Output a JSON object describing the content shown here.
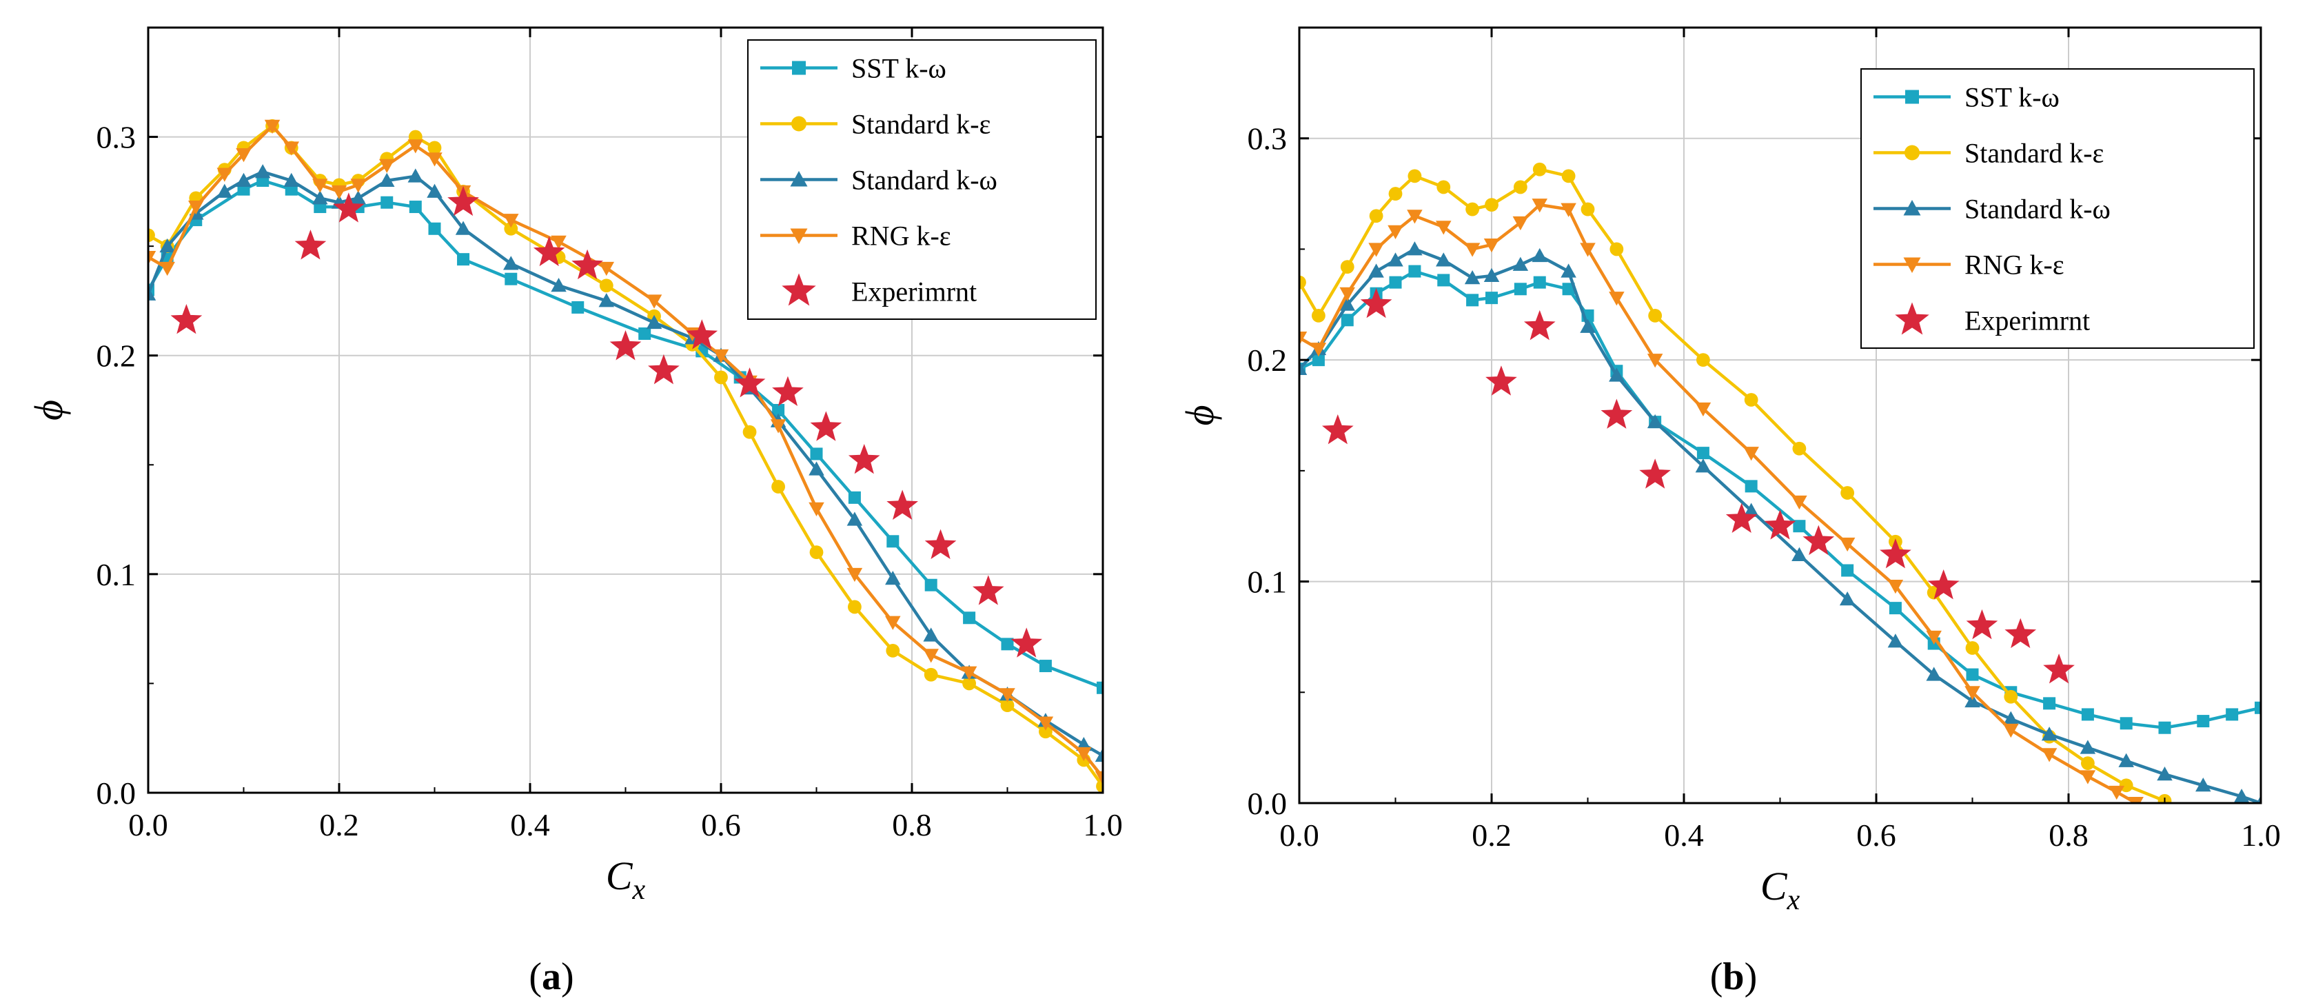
{
  "figure": {
    "panel_labels": [
      "a",
      "b"
    ],
    "colors": {
      "sst": "#1ba6c2",
      "std_ke": "#f5c400",
      "std_kw": "#2a7ea6",
      "rng": "#f28a1a",
      "exp": "#d8283c",
      "grid": "#cccccc",
      "axis": "#000000"
    }
  },
  "chart_data": [
    {
      "type": "line",
      "panel": "a",
      "xlabel": "C",
      "xlabel_sub": "x",
      "ylabel": "ϕ",
      "xlim": [
        0,
        1
      ],
      "ylim": [
        0,
        0.35
      ],
      "xticks": [
        0.0,
        0.2,
        0.4,
        0.6,
        0.8,
        1.0
      ],
      "xtick_labels": [
        "0.0",
        "0.2",
        "0.4",
        "0.6",
        "0.8",
        "1.0"
      ],
      "yticks": [
        0.0,
        0.1,
        0.2,
        0.3
      ],
      "ytick_labels": [
        "0.0",
        "0.1",
        "0.2",
        "0.3"
      ],
      "grid": true,
      "legend_position": "top-right",
      "series": [
        {
          "name": "SST k-ω",
          "key": "sst",
          "marker": "square",
          "x": [
            0.0,
            0.02,
            0.05,
            0.1,
            0.12,
            0.15,
            0.18,
            0.22,
            0.25,
            0.28,
            0.3,
            0.33,
            0.38,
            0.45,
            0.52,
            0.58,
            0.62,
            0.66,
            0.7,
            0.74,
            0.78,
            0.82,
            0.86,
            0.9,
            0.94,
            1.0
          ],
          "y": [
            0.23,
            0.245,
            0.262,
            0.276,
            0.28,
            0.276,
            0.268,
            0.268,
            0.27,
            0.268,
            0.258,
            0.244,
            0.235,
            0.222,
            0.21,
            0.202,
            0.19,
            0.175,
            0.155,
            0.135,
            0.115,
            0.095,
            0.08,
            0.068,
            0.058,
            0.048
          ]
        },
        {
          "name": "Standard k-ε",
          "key": "std_ke",
          "marker": "circle",
          "x": [
            0.0,
            0.02,
            0.05,
            0.08,
            0.1,
            0.13,
            0.15,
            0.18,
            0.2,
            0.22,
            0.25,
            0.28,
            0.3,
            0.33,
            0.38,
            0.43,
            0.48,
            0.53,
            0.57,
            0.6,
            0.63,
            0.66,
            0.7,
            0.74,
            0.78,
            0.82,
            0.86,
            0.9,
            0.94,
            0.98,
            1.0
          ],
          "y": [
            0.255,
            0.25,
            0.272,
            0.285,
            0.295,
            0.305,
            0.295,
            0.28,
            0.278,
            0.28,
            0.29,
            0.3,
            0.295,
            0.275,
            0.258,
            0.245,
            0.232,
            0.218,
            0.205,
            0.19,
            0.165,
            0.14,
            0.11,
            0.085,
            0.065,
            0.054,
            0.05,
            0.04,
            0.028,
            0.015,
            0.003
          ]
        },
        {
          "name": "Standard k-ω",
          "key": "std_kw",
          "marker": "triangle-up",
          "x": [
            0.0,
            0.02,
            0.05,
            0.08,
            0.1,
            0.12,
            0.15,
            0.18,
            0.2,
            0.22,
            0.25,
            0.28,
            0.3,
            0.33,
            0.38,
            0.43,
            0.48,
            0.53,
            0.57,
            0.6,
            0.63,
            0.66,
            0.7,
            0.74,
            0.78,
            0.82,
            0.86,
            0.9,
            0.94,
            0.98,
            1.0
          ],
          "y": [
            0.228,
            0.25,
            0.265,
            0.275,
            0.28,
            0.284,
            0.28,
            0.272,
            0.27,
            0.272,
            0.28,
            0.282,
            0.275,
            0.258,
            0.242,
            0.232,
            0.225,
            0.215,
            0.208,
            0.2,
            0.185,
            0.17,
            0.148,
            0.125,
            0.098,
            0.072,
            0.055,
            0.045,
            0.033,
            0.022,
            0.017
          ]
        },
        {
          "name": "RNG k-ε",
          "key": "rng",
          "marker": "triangle-down",
          "x": [
            0.0,
            0.02,
            0.05,
            0.08,
            0.1,
            0.13,
            0.15,
            0.18,
            0.2,
            0.22,
            0.25,
            0.28,
            0.3,
            0.33,
            0.38,
            0.43,
            0.48,
            0.53,
            0.57,
            0.6,
            0.63,
            0.66,
            0.7,
            0.74,
            0.78,
            0.82,
            0.86,
            0.9,
            0.94,
            0.98,
            1.0
          ],
          "y": [
            0.245,
            0.24,
            0.268,
            0.283,
            0.292,
            0.305,
            0.295,
            0.278,
            0.275,
            0.278,
            0.287,
            0.296,
            0.29,
            0.275,
            0.262,
            0.252,
            0.24,
            0.225,
            0.21,
            0.2,
            0.188,
            0.168,
            0.13,
            0.1,
            0.078,
            0.063,
            0.055,
            0.045,
            0.032,
            0.018,
            0.007
          ]
        },
        {
          "name": "Experimrnt",
          "key": "exp",
          "marker": "star",
          "line": false,
          "x": [
            0.04,
            0.17,
            0.21,
            0.33,
            0.42,
            0.46,
            0.5,
            0.54,
            0.58,
            0.63,
            0.67,
            0.71,
            0.75,
            0.79,
            0.83,
            0.88,
            0.92
          ],
          "y": [
            0.216,
            0.25,
            0.267,
            0.27,
            0.247,
            0.241,
            0.204,
            0.193,
            0.209,
            0.187,
            0.183,
            0.167,
            0.152,
            0.131,
            0.113,
            0.092,
            0.068
          ]
        }
      ]
    },
    {
      "type": "line",
      "panel": "b",
      "xlabel": "C",
      "xlabel_sub": "x",
      "ylabel": "ϕ",
      "xlim": [
        0,
        1
      ],
      "ylim": [
        0,
        0.35
      ],
      "xticks": [
        0.0,
        0.2,
        0.4,
        0.6,
        0.8,
        1.0
      ],
      "xtick_labels": [
        "0.0",
        "0.2",
        "0.4",
        "0.6",
        "0.8",
        "1.0"
      ],
      "yticks": [
        0.0,
        0.1,
        0.2,
        0.3
      ],
      "ytick_labels": [
        "0.0",
        "0.1",
        "0.2",
        "0.3"
      ],
      "grid": true,
      "legend_position": "top-right",
      "series": [
        {
          "name": "SST k-ω",
          "key": "sst",
          "marker": "square",
          "x": [
            0.0,
            0.02,
            0.05,
            0.08,
            0.1,
            0.12,
            0.15,
            0.18,
            0.2,
            0.23,
            0.25,
            0.28,
            0.3,
            0.33,
            0.37,
            0.42,
            0.47,
            0.52,
            0.57,
            0.62,
            0.66,
            0.7,
            0.74,
            0.78,
            0.82,
            0.86,
            0.9,
            0.94,
            0.97,
            1.0
          ],
          "y": [
            0.196,
            0.2,
            0.218,
            0.23,
            0.235,
            0.24,
            0.236,
            0.227,
            0.228,
            0.232,
            0.235,
            0.232,
            0.22,
            0.195,
            0.172,
            0.158,
            0.143,
            0.125,
            0.105,
            0.088,
            0.072,
            0.058,
            0.05,
            0.045,
            0.04,
            0.036,
            0.034,
            0.037,
            0.04,
            0.043
          ]
        },
        {
          "name": "Standard k-ε",
          "key": "std_ke",
          "marker": "circle",
          "x": [
            0.0,
            0.02,
            0.05,
            0.08,
            0.1,
            0.12,
            0.15,
            0.18,
            0.2,
            0.23,
            0.25,
            0.28,
            0.3,
            0.33,
            0.37,
            0.42,
            0.47,
            0.52,
            0.57,
            0.62,
            0.66,
            0.7,
            0.74,
            0.78,
            0.82,
            0.86,
            0.9
          ],
          "y": [
            0.235,
            0.22,
            0.242,
            0.265,
            0.275,
            0.283,
            0.278,
            0.268,
            0.27,
            0.278,
            0.286,
            0.283,
            0.268,
            0.25,
            0.22,
            0.2,
            0.182,
            0.16,
            0.14,
            0.118,
            0.095,
            0.07,
            0.048,
            0.03,
            0.018,
            0.008,
            0.001
          ]
        },
        {
          "name": "Standard k-ω",
          "key": "std_kw",
          "marker": "triangle-up",
          "x": [
            0.0,
            0.02,
            0.05,
            0.08,
            0.1,
            0.12,
            0.15,
            0.18,
            0.2,
            0.23,
            0.25,
            0.28,
            0.3,
            0.33,
            0.37,
            0.42,
            0.47,
            0.52,
            0.57,
            0.62,
            0.66,
            0.7,
            0.74,
            0.78,
            0.82,
            0.86,
            0.9,
            0.94,
            0.98,
            1.0
          ],
          "y": [
            0.196,
            0.205,
            0.225,
            0.24,
            0.245,
            0.25,
            0.245,
            0.237,
            0.238,
            0.243,
            0.247,
            0.24,
            0.215,
            0.193,
            0.172,
            0.152,
            0.132,
            0.112,
            0.092,
            0.073,
            0.058,
            0.046,
            0.038,
            0.031,
            0.025,
            0.019,
            0.013,
            0.008,
            0.003,
            0.0
          ]
        },
        {
          "name": "RNG k-ε",
          "key": "rng",
          "marker": "triangle-down",
          "x": [
            0.0,
            0.02,
            0.05,
            0.08,
            0.1,
            0.12,
            0.15,
            0.18,
            0.2,
            0.23,
            0.25,
            0.28,
            0.3,
            0.33,
            0.37,
            0.42,
            0.47,
            0.52,
            0.57,
            0.62,
            0.66,
            0.7,
            0.74,
            0.78,
            0.82,
            0.85,
            0.87
          ],
          "y": [
            0.21,
            0.205,
            0.23,
            0.25,
            0.258,
            0.265,
            0.26,
            0.25,
            0.252,
            0.262,
            0.27,
            0.268,
            0.25,
            0.228,
            0.2,
            0.178,
            0.158,
            0.136,
            0.117,
            0.098,
            0.075,
            0.05,
            0.033,
            0.022,
            0.012,
            0.005,
            0.0
          ]
        },
        {
          "name": "Experimrnt",
          "key": "exp",
          "marker": "star",
          "line": false,
          "x": [
            0.04,
            0.08,
            0.21,
            0.25,
            0.33,
            0.37,
            0.46,
            0.5,
            0.54,
            0.62,
            0.67,
            0.71,
            0.75,
            0.79
          ],
          "y": [
            0.168,
            0.225,
            0.19,
            0.215,
            0.175,
            0.148,
            0.128,
            0.125,
            0.118,
            0.112,
            0.098,
            0.08,
            0.076,
            0.06
          ]
        }
      ]
    }
  ]
}
